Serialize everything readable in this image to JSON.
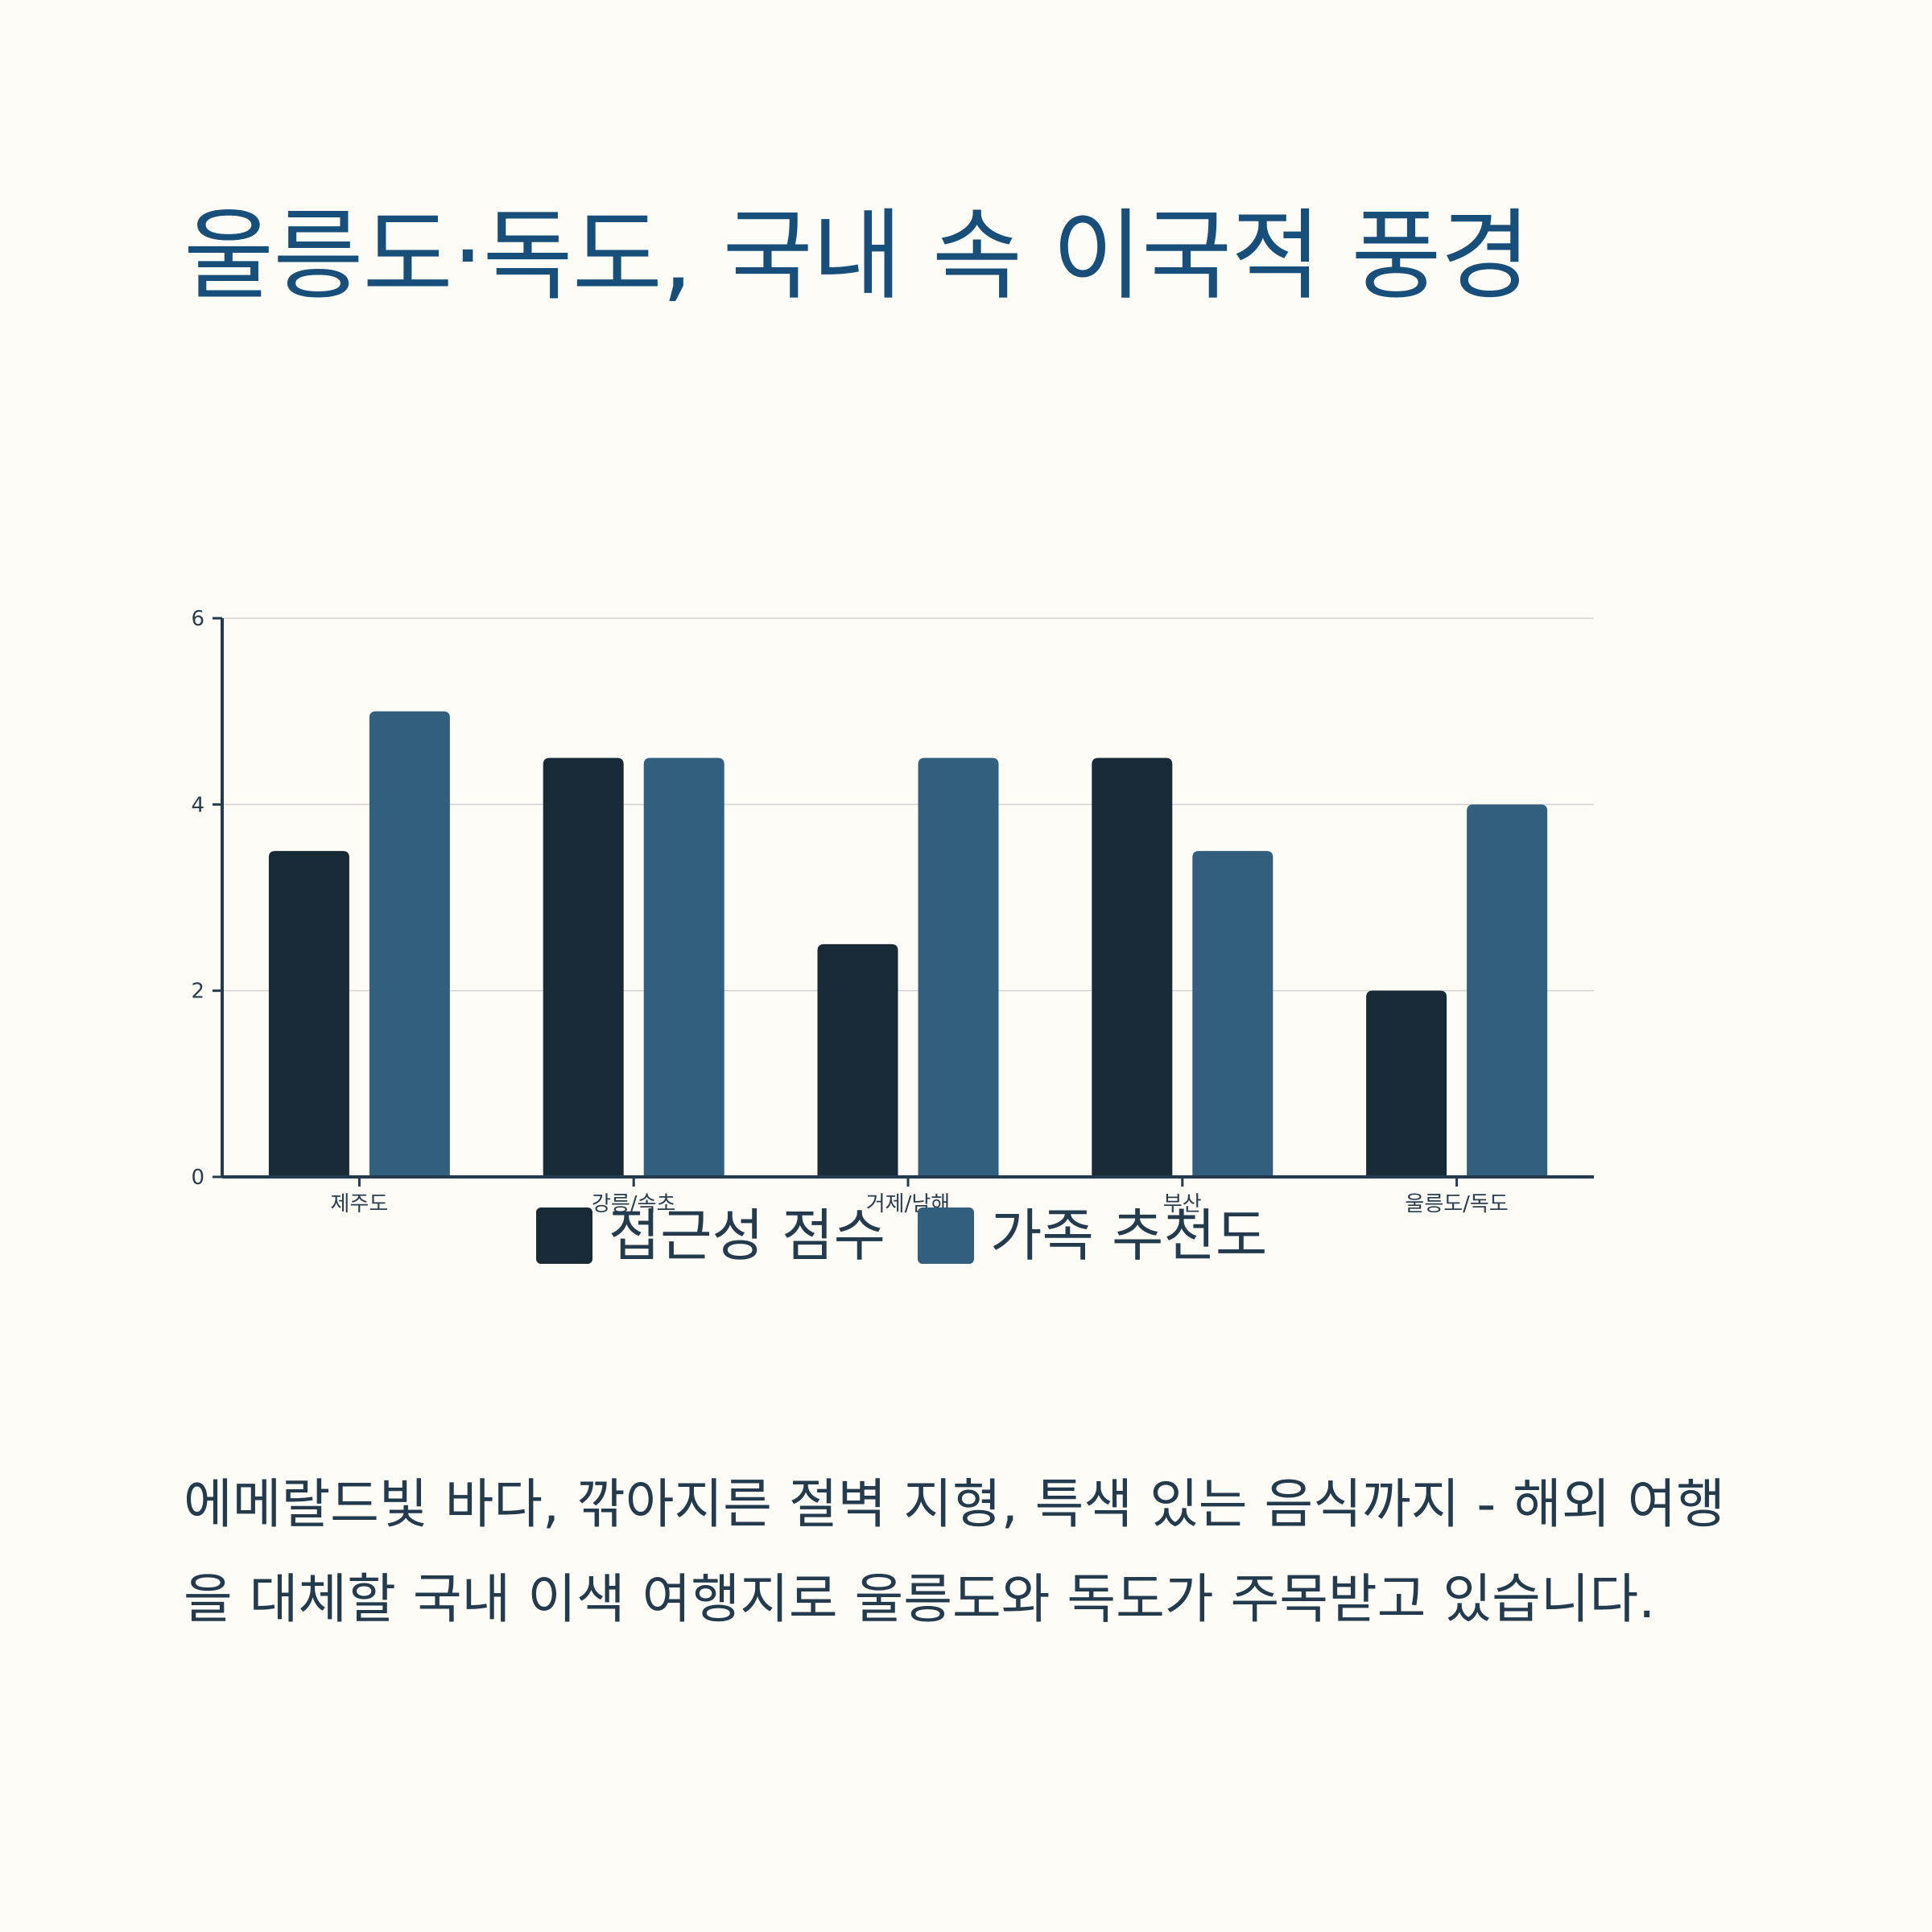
{
  "page": {
    "title": "울릉도·독도, 국내 속 이국적 풍경",
    "description": "에메랄드빛 바다, 깎아지른 절벽 지형, 특색 있는 음식까지 - 해외 여행을 대체할 국내 이색 여행지로 울릉도와 독도가 주목받고 있습니다."
  },
  "colors": {
    "background": "#fefcf6",
    "title": "#174f7a",
    "text": "#243a4d",
    "grid": "#d3d3d3",
    "axis": "#243a4d"
  },
  "chart_data": {
    "type": "bar",
    "title": "",
    "xlabel": "",
    "ylabel": "",
    "categories": [
      "제주도",
      "강릉/속초",
      "거제/남해",
      "부산",
      "울릉도/독도"
    ],
    "series": [
      {
        "name": "접근성 점수",
        "color": "#182a36",
        "values": [
          3.5,
          4.5,
          2.5,
          4.5,
          2.0
        ]
      },
      {
        "name": "가족 추천도",
        "color": "#325f7e",
        "values": [
          5.0,
          4.5,
          4.5,
          3.5,
          4.0
        ]
      }
    ],
    "ylim": [
      0,
      6
    ],
    "yticks": [
      "0",
      "2",
      "4",
      "6"
    ],
    "grid": true,
    "legend_position": "bottom-center"
  }
}
